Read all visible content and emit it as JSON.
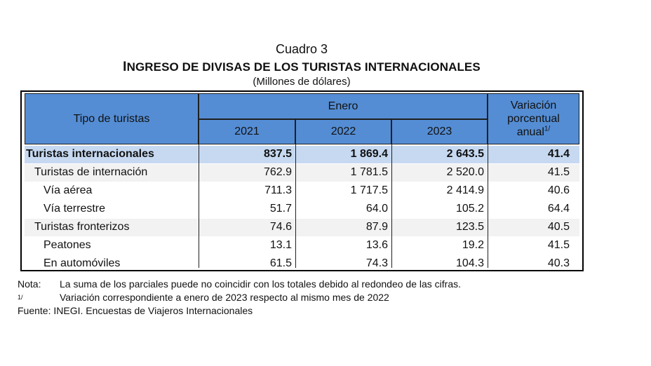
{
  "title": "Cuadro 3",
  "heading_first": "I",
  "heading_rest": "NGRESO DE DIVISAS DE LOS TURISTAS INTERNACIONALES",
  "units": "(Millones de dólares)",
  "table": {
    "header": {
      "tipo": "Tipo de turistas",
      "enero": "Enero",
      "years": [
        "2021",
        "2022",
        "2023"
      ],
      "variacion_line1": "Variación",
      "variacion_line2": "porcentual",
      "variacion_line3": "anual",
      "variacion_sup": "1/"
    },
    "rows": [
      {
        "label": "Turistas internacionales",
        "v2021": "837.5",
        "v2022": "1 869.4",
        "v2023": "2 643.5",
        "var": "41.4"
      },
      {
        "label": "Turistas de internación",
        "v2021": "762.9",
        "v2022": "1 781.5",
        "v2023": "2 520.0",
        "var": "41.5"
      },
      {
        "label": "Vía aérea",
        "v2021": "711.3",
        "v2022": "1 717.5",
        "v2023": "2 414.9",
        "var": "40.6"
      },
      {
        "label": "Vía terrestre",
        "v2021": "51.7",
        "v2022": "64.0",
        "v2023": "105.2",
        "var": "64.4"
      },
      {
        "label": "Turistas fronterizos",
        "v2021": "74.6",
        "v2022": "87.9",
        "v2023": "123.5",
        "var": "40.5"
      },
      {
        "label": "Peatones",
        "v2021": "13.1",
        "v2022": "13.6",
        "v2023": "19.2",
        "var": "41.5"
      },
      {
        "label": "En automóviles",
        "v2021": "61.5",
        "v2022": "74.3",
        "v2023": "104.3",
        "var": "40.3"
      }
    ]
  },
  "notes": {
    "nota_key": "Nota:",
    "nota_text": "La suma de los parciales puede no coincidir con los totales debido al redondeo de las cifras.",
    "ref_key": "1/",
    "ref_text": "Variación correspondiente a enero de 2023 respecto al mismo mes de 2022",
    "fuente": "Fuente: INEGI. Encuestas de Viajeros Internacionales"
  },
  "colors": {
    "header_blue": "#548dd4",
    "total_row": "#c6d9f1",
    "shaded_row": "#f2f2f2"
  }
}
